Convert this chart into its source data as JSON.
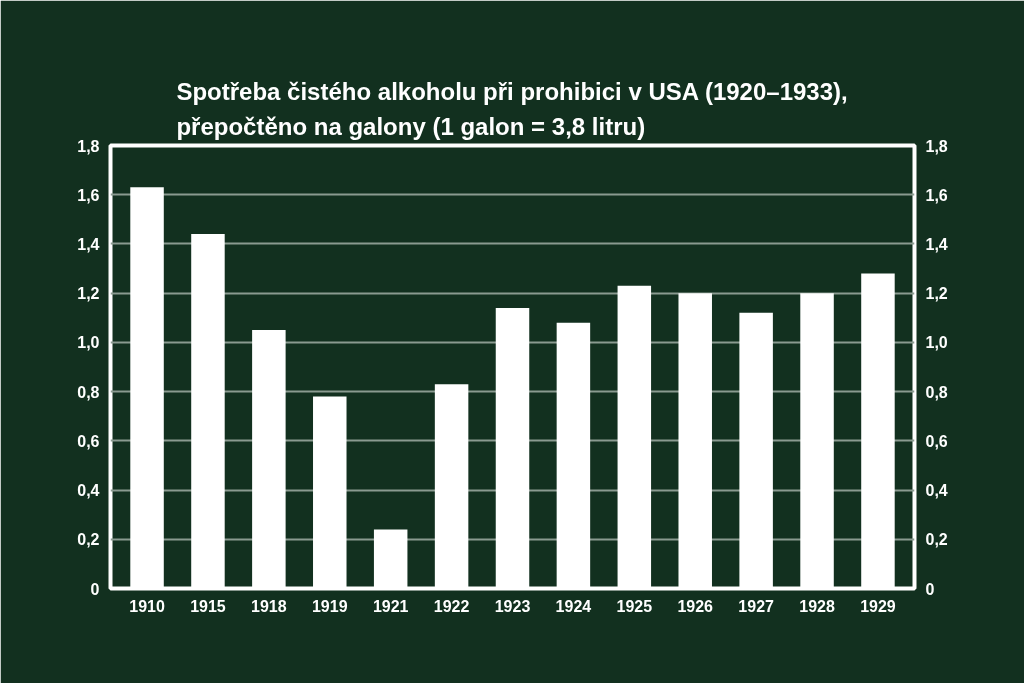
{
  "chart_data": {
    "type": "bar",
    "title": "Spotřeba čistého alkoholu při prohibici v USA (1920–1933),\npřepočtěno na galony (1 galon = 3,8 litru)",
    "categories": [
      "1910",
      "1915",
      "1918",
      "1919",
      "1921",
      "1922",
      "1923",
      "1924",
      "1925",
      "1926",
      "1927",
      "1928",
      "1929"
    ],
    "values": [
      1.63,
      1.44,
      1.05,
      0.78,
      0.24,
      0.83,
      1.14,
      1.08,
      1.23,
      1.2,
      1.12,
      1.2,
      1.28
    ],
    "color": "#ffffff",
    "ylim": [
      0,
      1.8
    ],
    "yticks": [
      0,
      {
        "value": 0.2,
        "label": "0,2"
      },
      {
        "value": 0.4,
        "label": "0,4"
      },
      {
        "value": 0.6,
        "label": "0,6"
      },
      {
        "value": 0.8,
        "label": "0,8"
      },
      {
        "value": 1.0,
        "label": "1,0"
      },
      {
        "value": 1.2,
        "label": "1,2"
      },
      {
        "value": 1.4,
        "label": "1,4"
      },
      {
        "value": 1.6,
        "label": "1,6"
      },
      {
        "value": 1.8,
        "label": "1,8"
      }
    ],
    "y2lim": [
      0,
      1.8
    ],
    "y2ticks": [
      0,
      {
        "value": 0.2,
        "label": "0,2"
      },
      {
        "value": 0.4,
        "label": "0,4"
      },
      {
        "value": 0.6,
        "label": "0,6"
      },
      {
        "value": 0.8,
        "label": "0,8"
      },
      {
        "value": 1.0,
        "label": "1,0"
      },
      {
        "value": 1.2,
        "label": "1,2"
      },
      {
        "value": 1.4,
        "label": "1,4"
      },
      {
        "value": 1.6,
        "label": "1,6"
      },
      {
        "value": 1.8,
        "label": "1,8"
      }
    ],
    "grid": "y"
  }
}
